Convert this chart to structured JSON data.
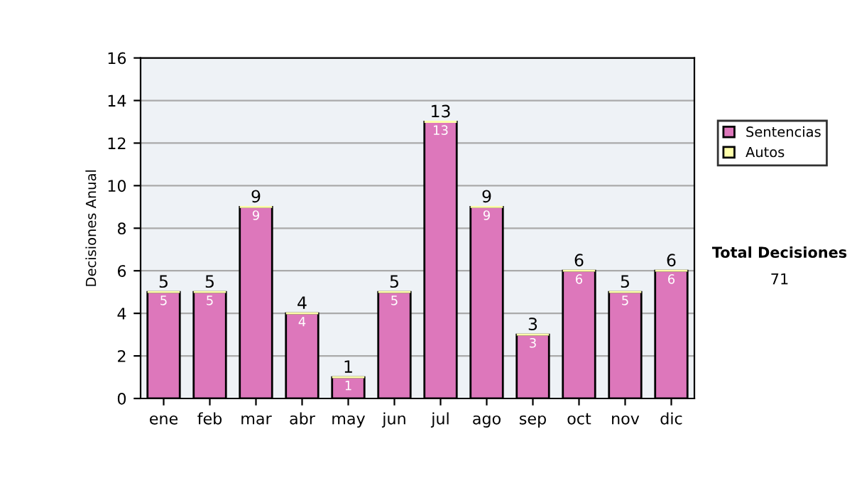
{
  "chart_data": {
    "type": "bar",
    "stacked": true,
    "ylabel": "Decisiones Anual",
    "categories": [
      "ene",
      "feb",
      "mar",
      "abr",
      "may",
      "jun",
      "jul",
      "ago",
      "sep",
      "oct",
      "nov",
      "dic"
    ],
    "series": [
      {
        "name": "Sentencias",
        "color": "#dd77bb",
        "values": [
          5,
          5,
          9,
          4,
          1,
          5,
          13,
          9,
          3,
          6,
          5,
          6
        ],
        "value_labels": [
          "5",
          "5",
          "9",
          "4",
          "1",
          "5",
          "13",
          "9",
          "3",
          "6",
          "5",
          "6"
        ]
      },
      {
        "name": "Autos",
        "color": "#ffffaa",
        "values": [
          0,
          0,
          0,
          0,
          0,
          0,
          0,
          0,
          0,
          0,
          0,
          0
        ]
      }
    ],
    "totals": [
      "5",
      "5",
      "9",
      "4",
      "1",
      "5",
      "13",
      "9",
      "3",
      "6",
      "5",
      "6"
    ],
    "ylim": [
      0,
      16
    ],
    "yticks": [
      0,
      2,
      4,
      6,
      8,
      10,
      12,
      14,
      16
    ],
    "grid": "y",
    "legend": "right",
    "annotations": [
      "Total Decisiones",
      "71"
    ]
  }
}
